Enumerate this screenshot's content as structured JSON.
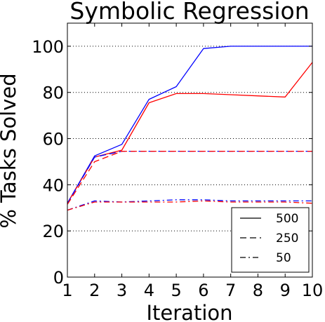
{
  "chart_data": {
    "type": "line",
    "title": "Symbolic Regression",
    "xlabel": "Iteration",
    "ylabel": "% Tasks Solved",
    "xlim": [
      1,
      10
    ],
    "ylim": [
      0,
      110
    ],
    "xticks": [
      "1",
      "2",
      "3",
      "4",
      "5",
      "6",
      "7",
      "8",
      "9",
      "10"
    ],
    "yticks": [
      "0",
      "20",
      "40",
      "60",
      "80",
      "100"
    ],
    "grid": "horizontal dotted",
    "legend_position": "lower-right",
    "legend": [
      {
        "label": "500",
        "style": "solid"
      },
      {
        "label": "250",
        "style": "dashed"
      },
      {
        "label": "50",
        "style": "dashdot"
      }
    ],
    "x": [
      1,
      2,
      3,
      4,
      5,
      6,
      7,
      8,
      9,
      10
    ],
    "series": [
      {
        "color": "#0000ff",
        "style": "solid",
        "values": [
          32,
          52.5,
          57.5,
          77,
          82.5,
          99,
          100,
          100,
          100,
          100
        ]
      },
      {
        "color": "#ff0000",
        "style": "solid",
        "values": [
          32,
          52,
          55,
          75.5,
          79.5,
          79.5,
          79,
          78.5,
          78,
          93
        ]
      },
      {
        "color": "#0000ff",
        "style": "dashed",
        "values": [
          32,
          52,
          54.5,
          54.5,
          54.5,
          54.5,
          54.5,
          54.5,
          54.5,
          54.5
        ]
      },
      {
        "color": "#ff0000",
        "style": "dashed",
        "values": [
          31.5,
          50,
          54.5,
          54.5,
          54.5,
          54.5,
          54.5,
          54.5,
          54.5,
          54.5
        ]
      },
      {
        "color": "#0000ff",
        "style": "dashdot",
        "values": [
          29,
          33,
          32.5,
          33,
          33.5,
          33.5,
          33,
          33,
          33,
          33
        ]
      },
      {
        "color": "#ff0000",
        "style": "dashdot",
        "values": [
          29,
          32.5,
          32.5,
          32.5,
          32.5,
          33,
          32.5,
          32.5,
          32.5,
          32
        ]
      }
    ]
  }
}
